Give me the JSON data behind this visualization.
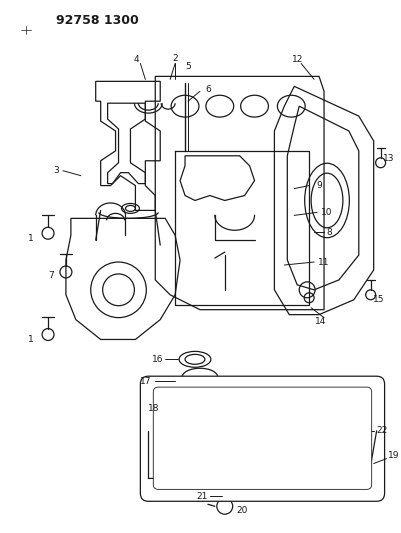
{
  "title": "92758 1300",
  "background": "#ffffff",
  "line_color": "#1a1a1a",
  "figsize": [
    4.01,
    5.33
  ],
  "dpi": 100
}
